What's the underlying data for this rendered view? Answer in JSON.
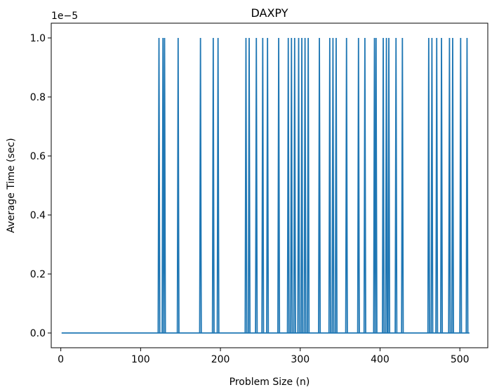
{
  "chart_data": {
    "type": "line",
    "title": "DAXPY",
    "xlabel": "Problem Size (n)",
    "ylabel": "Average Time (sec)",
    "offset_text": "1e−5",
    "xlim": [
      -12,
      535
    ],
    "ylim": [
      -0.05,
      1.05
    ],
    "y_scale_factor": 1e-05,
    "x_ticks": [
      0,
      100,
      200,
      300,
      400,
      500
    ],
    "x_tick_labels": [
      "0",
      "100",
      "200",
      "300",
      "400",
      "500"
    ],
    "y_ticks": [
      0.0,
      0.2,
      0.4,
      0.6,
      0.8,
      1.0
    ],
    "y_tick_labels": [
      "0.0",
      "0.2",
      "0.4",
      "0.6",
      "0.8",
      "1.0"
    ],
    "grid": false,
    "series": [
      {
        "color": "#1f77b4",
        "x_range": [
          1,
          512
        ],
        "base_value": 0.0,
        "spike_value": 1.0,
        "spike_x": [
          123,
          128,
          130,
          147,
          175,
          191,
          197,
          232,
          236,
          245,
          253,
          259,
          273,
          285,
          289,
          293,
          298,
          302,
          306,
          310,
          324,
          337,
          341,
          345,
          358,
          373,
          381,
          393,
          395,
          404,
          408,
          411,
          420,
          428,
          461,
          465,
          471,
          477,
          487,
          491,
          501,
          509
        ]
      }
    ]
  }
}
